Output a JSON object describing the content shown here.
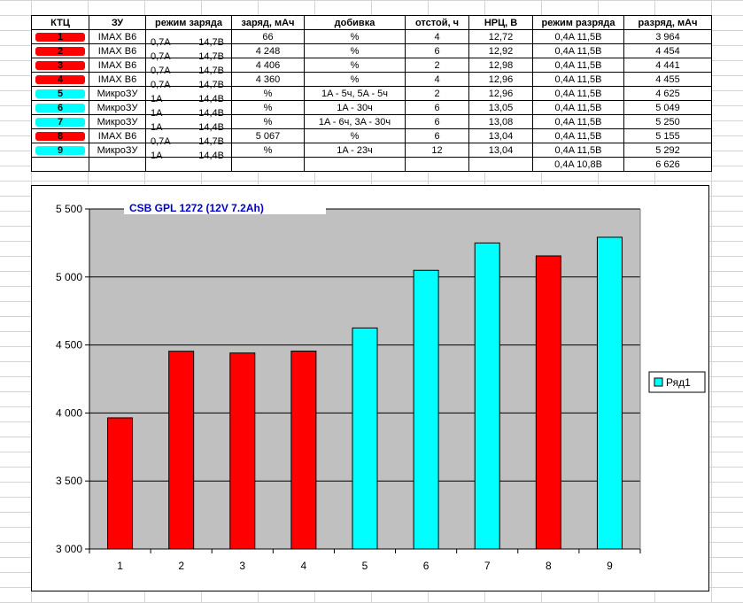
{
  "table": {
    "headers": [
      "КТЦ",
      "ЗУ",
      "режим заряда",
      "заряд, мАч",
      "добивка",
      "отстой, ч",
      "НРЦ, В",
      "режим разряда",
      "разряд, мАч"
    ],
    "rows": [
      {
        "ktc": "1",
        "mark": "#ff0000",
        "charger": "IMAX B6",
        "mode_a": "0,7A",
        "mode_v": "14,7B",
        "charge": "66",
        "topoff": "%",
        "rest": "4",
        "nrc": "12,72",
        "discharge_mode": "0,4A 11,5B",
        "discharge": "3 964"
      },
      {
        "ktc": "2",
        "mark": "#ff0000",
        "charger": "IMAX B6",
        "mode_a": "0,7A",
        "mode_v": "14,7B",
        "charge": "4 248",
        "topoff": "%",
        "rest": "6",
        "nrc": "12,92",
        "discharge_mode": "0,4A 11,5B",
        "discharge": "4 454"
      },
      {
        "ktc": "3",
        "mark": "#ff0000",
        "charger": "IMAX B6",
        "mode_a": "0,7A",
        "mode_v": "14,7B",
        "charge": "4 406",
        "topoff": "%",
        "rest": "2",
        "nrc": "12,98",
        "discharge_mode": "0,4A 11,5B",
        "discharge": "4 441"
      },
      {
        "ktc": "4",
        "mark": "#ff0000",
        "charger": "IMAX B6",
        "mode_a": "0,7A",
        "mode_v": "14,7B",
        "charge": "4 360",
        "topoff": "%",
        "rest": "4",
        "nrc": "12,96",
        "discharge_mode": "0,4A 11,5B",
        "discharge": "4 455"
      },
      {
        "ktc": "5",
        "mark": "#00ffff",
        "charger": "МикроЗУ",
        "mode_a": "1A",
        "mode_v": "14,4B",
        "charge": "%",
        "topoff": "1A - 5ч, 5A - 5ч",
        "rest": "2",
        "nrc": "12,96",
        "discharge_mode": "0,4A 11,5B",
        "discharge": "4 625"
      },
      {
        "ktc": "6",
        "mark": "#00ffff",
        "charger": "МикроЗУ",
        "mode_a": "1A",
        "mode_v": "14,4B",
        "charge": "%",
        "topoff": "1A - 30ч",
        "rest": "6",
        "nrc": "13,05",
        "discharge_mode": "0,4A 11,5B",
        "discharge": "5 049"
      },
      {
        "ktc": "7",
        "mark": "#00ffff",
        "charger": "МикроЗУ",
        "mode_a": "1A",
        "mode_v": "14,4B",
        "charge": "%",
        "topoff": "1A - 6ч, 3A - 30ч",
        "rest": "6",
        "nrc": "13,08",
        "discharge_mode": "0,4A 11,5B",
        "discharge": "5 250"
      },
      {
        "ktc": "8",
        "mark": "#ff0000",
        "charger": "IMAX B6",
        "mode_a": "0,7A",
        "mode_v": "14,7B",
        "charge": "5 067",
        "topoff": "%",
        "rest": "6",
        "nrc": "13,04",
        "discharge_mode": "0,4A 11,5B",
        "discharge": "5 155"
      },
      {
        "ktc": "9",
        "mark": "#00ffff",
        "charger": "МикроЗУ",
        "mode_a": "1A",
        "mode_v": "14,4B",
        "charge": "%",
        "topoff": "1A - 23ч",
        "rest": "12",
        "nrc": "13,04",
        "discharge_mode": "0,4A 11,5B",
        "discharge": "5 292"
      },
      {
        "ktc": "",
        "mark": "",
        "charger": "",
        "mode_a": "",
        "mode_v": "",
        "charge": "",
        "topoff": "",
        "rest": "",
        "nrc": "",
        "discharge_mode": "0,4A 10,8B",
        "discharge": "6 626"
      }
    ]
  },
  "chart_data": {
    "type": "bar",
    "title": "CSB GPL 1272 (12V 7.2Ah)",
    "categories": [
      "1",
      "2",
      "3",
      "4",
      "5",
      "6",
      "7",
      "8",
      "9"
    ],
    "series": [
      {
        "name": "Ряд1",
        "values": [
          3964,
          4454,
          4441,
          4455,
          4625,
          5049,
          5250,
          5155,
          5292
        ]
      }
    ],
    "bar_colors": [
      "#ff0000",
      "#ff0000",
      "#ff0000",
      "#ff0000",
      "#00ffff",
      "#00ffff",
      "#00ffff",
      "#ff0000",
      "#00ffff"
    ],
    "ylim": [
      3000,
      5500
    ],
    "yticks": [
      3000,
      3500,
      4000,
      4500,
      5000,
      5500
    ],
    "ytick_labels": [
      "3 000",
      "3 500",
      "4 000",
      "4 500",
      "5 000",
      "5 500"
    ],
    "grid": "horizontal",
    "plot_background": "#c0c0c0",
    "legend_placement": "right",
    "legend_color": "#00ffff",
    "xlabel": "",
    "ylabel": ""
  }
}
